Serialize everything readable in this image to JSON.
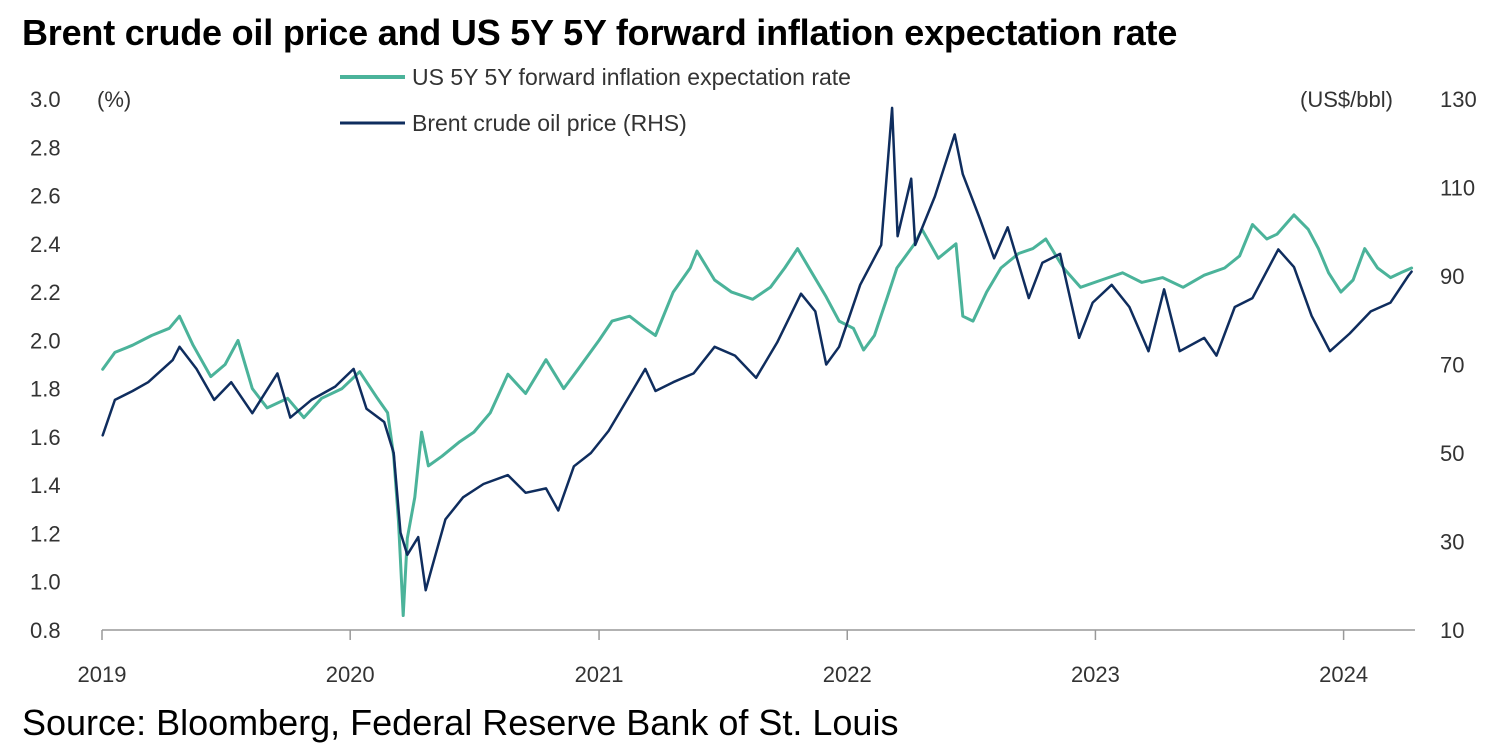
{
  "title": "Brent crude oil price and US 5Y 5Y forward inflation expectation rate",
  "source": "Source: Bloomberg, Federal Reserve Bank of St. Louis",
  "chart_data": {
    "type": "line",
    "x_axis": {
      "range": [
        "2019-01-01",
        "2024-04-15"
      ],
      "tick_labels": [
        "2019",
        "2020",
        "2021",
        "2022",
        "2023",
        "2024"
      ]
    },
    "y_left": {
      "unit": "(%)",
      "range": [
        0.8,
        3.0
      ],
      "tick_labels": [
        "0.8",
        "1.0",
        "1.2",
        "1.4",
        "1.6",
        "1.8",
        "2.0",
        "2.2",
        "2.4",
        "2.6",
        "2.8",
        "3.0"
      ]
    },
    "y_right": {
      "unit": "(US$/bbl)",
      "range": [
        10,
        130
      ],
      "tick_labels": [
        "10",
        "30",
        "50",
        "70",
        "90",
        "110",
        "130"
      ]
    },
    "grid": false,
    "legend": {
      "placement": "top-center"
    },
    "series": [
      {
        "name": "US 5Y 5Y forward inflation expectation rate",
        "axis": "left",
        "color": "#4bb39a",
        "points": [
          [
            "2019-01-02",
            1.88
          ],
          [
            "2019-01-20",
            1.95
          ],
          [
            "2019-02-15",
            1.98
          ],
          [
            "2019-03-15",
            2.02
          ],
          [
            "2019-04-10",
            2.05
          ],
          [
            "2019-04-25",
            2.1
          ],
          [
            "2019-05-15",
            1.98
          ],
          [
            "2019-06-10",
            1.85
          ],
          [
            "2019-07-01",
            1.9
          ],
          [
            "2019-07-20",
            2.0
          ],
          [
            "2019-08-10",
            1.8
          ],
          [
            "2019-09-01",
            1.72
          ],
          [
            "2019-10-01",
            1.76
          ],
          [
            "2019-10-25",
            1.68
          ],
          [
            "2019-11-20",
            1.76
          ],
          [
            "2019-12-20",
            1.8
          ],
          [
            "2020-01-15",
            1.87
          ],
          [
            "2020-02-10",
            1.76
          ],
          [
            "2020-02-25",
            1.7
          ],
          [
            "2020-03-05",
            1.52
          ],
          [
            "2020-03-12",
            1.25
          ],
          [
            "2020-03-18",
            0.92
          ],
          [
            "2020-03-19",
            0.86
          ],
          [
            "2020-03-25",
            1.18
          ],
          [
            "2020-04-05",
            1.35
          ],
          [
            "2020-04-15",
            1.62
          ],
          [
            "2020-04-25",
            1.48
          ],
          [
            "2020-05-15",
            1.52
          ],
          [
            "2020-06-10",
            1.58
          ],
          [
            "2020-07-01",
            1.62
          ],
          [
            "2020-07-25",
            1.7
          ],
          [
            "2020-08-20",
            1.86
          ],
          [
            "2020-09-15",
            1.78
          ],
          [
            "2020-10-15",
            1.92
          ],
          [
            "2020-11-10",
            1.8
          ],
          [
            "2020-12-01",
            1.88
          ],
          [
            "2021-01-01",
            2.0
          ],
          [
            "2021-01-20",
            2.08
          ],
          [
            "2021-02-15",
            2.1
          ],
          [
            "2021-03-10",
            2.05
          ],
          [
            "2021-03-25",
            2.02
          ],
          [
            "2021-04-20",
            2.2
          ],
          [
            "2021-05-15",
            2.3
          ],
          [
            "2021-05-25",
            2.37
          ],
          [
            "2021-06-20",
            2.25
          ],
          [
            "2021-07-15",
            2.2
          ],
          [
            "2021-08-15",
            2.17
          ],
          [
            "2021-09-10",
            2.22
          ],
          [
            "2021-10-01",
            2.3
          ],
          [
            "2021-10-20",
            2.38
          ],
          [
            "2021-11-10",
            2.28
          ],
          [
            "2021-12-01",
            2.18
          ],
          [
            "2021-12-20",
            2.08
          ],
          [
            "2022-01-10",
            2.05
          ],
          [
            "2022-01-25",
            1.96
          ],
          [
            "2022-02-10",
            2.02
          ],
          [
            "2022-03-01",
            2.18
          ],
          [
            "2022-03-15",
            2.3
          ],
          [
            "2022-04-10",
            2.4
          ],
          [
            "2022-04-21",
            2.46
          ],
          [
            "2022-05-15",
            2.34
          ],
          [
            "2022-06-10",
            2.4
          ],
          [
            "2022-06-20",
            2.1
          ],
          [
            "2022-07-05",
            2.08
          ],
          [
            "2022-07-25",
            2.2
          ],
          [
            "2022-08-15",
            2.3
          ],
          [
            "2022-09-10",
            2.36
          ],
          [
            "2022-10-01",
            2.38
          ],
          [
            "2022-10-20",
            2.42
          ],
          [
            "2022-11-15",
            2.3
          ],
          [
            "2022-12-10",
            2.22
          ],
          [
            "2023-01-10",
            2.25
          ],
          [
            "2023-02-10",
            2.28
          ],
          [
            "2023-03-10",
            2.24
          ],
          [
            "2023-04-10",
            2.26
          ],
          [
            "2023-05-10",
            2.22
          ],
          [
            "2023-06-10",
            2.27
          ],
          [
            "2023-07-10",
            2.3
          ],
          [
            "2023-08-01",
            2.35
          ],
          [
            "2023-08-20",
            2.48
          ],
          [
            "2023-09-10",
            2.42
          ],
          [
            "2023-09-25",
            2.44
          ],
          [
            "2023-10-20",
            2.52
          ],
          [
            "2023-11-10",
            2.46
          ],
          [
            "2023-11-25",
            2.38
          ],
          [
            "2023-12-10",
            2.28
          ],
          [
            "2023-12-28",
            2.2
          ],
          [
            "2024-01-15",
            2.25
          ],
          [
            "2024-02-01",
            2.38
          ],
          [
            "2024-02-20",
            2.3
          ],
          [
            "2024-03-10",
            2.26
          ],
          [
            "2024-03-25",
            2.28
          ],
          [
            "2024-04-10",
            2.3
          ]
        ]
      },
      {
        "name": "Brent crude oil price (RHS)",
        "axis": "right",
        "color": "#0f2d5e",
        "points": [
          [
            "2019-01-02",
            54
          ],
          [
            "2019-01-20",
            62
          ],
          [
            "2019-02-15",
            64
          ],
          [
            "2019-03-10",
            66
          ],
          [
            "2019-04-15",
            71
          ],
          [
            "2019-04-25",
            74
          ],
          [
            "2019-05-20",
            69
          ],
          [
            "2019-06-15",
            62
          ],
          [
            "2019-07-10",
            66
          ],
          [
            "2019-08-10",
            59
          ],
          [
            "2019-09-16",
            68
          ],
          [
            "2019-10-05",
            58
          ],
          [
            "2019-11-05",
            62
          ],
          [
            "2019-12-10",
            65
          ],
          [
            "2020-01-06",
            69
          ],
          [
            "2020-01-25",
            60
          ],
          [
            "2020-02-20",
            57
          ],
          [
            "2020-03-05",
            50
          ],
          [
            "2020-03-15",
            32
          ],
          [
            "2020-03-25",
            27
          ],
          [
            "2020-04-10",
            31
          ],
          [
            "2020-04-21",
            19
          ],
          [
            "2020-04-30",
            24
          ],
          [
            "2020-05-20",
            35
          ],
          [
            "2020-06-15",
            40
          ],
          [
            "2020-07-15",
            43
          ],
          [
            "2020-08-20",
            45
          ],
          [
            "2020-09-15",
            41
          ],
          [
            "2020-10-15",
            42
          ],
          [
            "2020-11-02",
            37
          ],
          [
            "2020-11-25",
            47
          ],
          [
            "2020-12-20",
            50
          ],
          [
            "2021-01-15",
            55
          ],
          [
            "2021-02-15",
            63
          ],
          [
            "2021-03-10",
            69
          ],
          [
            "2021-03-25",
            64
          ],
          [
            "2021-04-20",
            66
          ],
          [
            "2021-05-20",
            68
          ],
          [
            "2021-06-20",
            74
          ],
          [
            "2021-07-20",
            72
          ],
          [
            "2021-08-20",
            67
          ],
          [
            "2021-09-20",
            75
          ],
          [
            "2021-10-25",
            86
          ],
          [
            "2021-11-15",
            82
          ],
          [
            "2021-12-01",
            70
          ],
          [
            "2021-12-20",
            74
          ],
          [
            "2022-01-20",
            88
          ],
          [
            "2022-02-20",
            97
          ],
          [
            "2022-03-08",
            128
          ],
          [
            "2022-03-16",
            99
          ],
          [
            "2022-04-05",
            112
          ],
          [
            "2022-04-11",
            97
          ],
          [
            "2022-05-10",
            108
          ],
          [
            "2022-06-08",
            122
          ],
          [
            "2022-06-20",
            113
          ],
          [
            "2022-07-15",
            103
          ],
          [
            "2022-08-05",
            94
          ],
          [
            "2022-08-25",
            101
          ],
          [
            "2022-09-25",
            85
          ],
          [
            "2022-10-15",
            93
          ],
          [
            "2022-11-10",
            95
          ],
          [
            "2022-12-08",
            76
          ],
          [
            "2022-12-28",
            84
          ],
          [
            "2023-01-25",
            88
          ],
          [
            "2023-02-20",
            83
          ],
          [
            "2023-03-20",
            73
          ],
          [
            "2023-04-12",
            87
          ],
          [
            "2023-05-05",
            73
          ],
          [
            "2023-06-10",
            76
          ],
          [
            "2023-06-28",
            72
          ],
          [
            "2023-07-25",
            83
          ],
          [
            "2023-08-20",
            85
          ],
          [
            "2023-09-27",
            96
          ],
          [
            "2023-10-20",
            92
          ],
          [
            "2023-11-15",
            81
          ],
          [
            "2023-12-12",
            73
          ],
          [
            "2024-01-10",
            77
          ],
          [
            "2024-02-10",
            82
          ],
          [
            "2024-03-10",
            84
          ],
          [
            "2024-04-05",
            90
          ],
          [
            "2024-04-10",
            91
          ]
        ]
      }
    ]
  }
}
